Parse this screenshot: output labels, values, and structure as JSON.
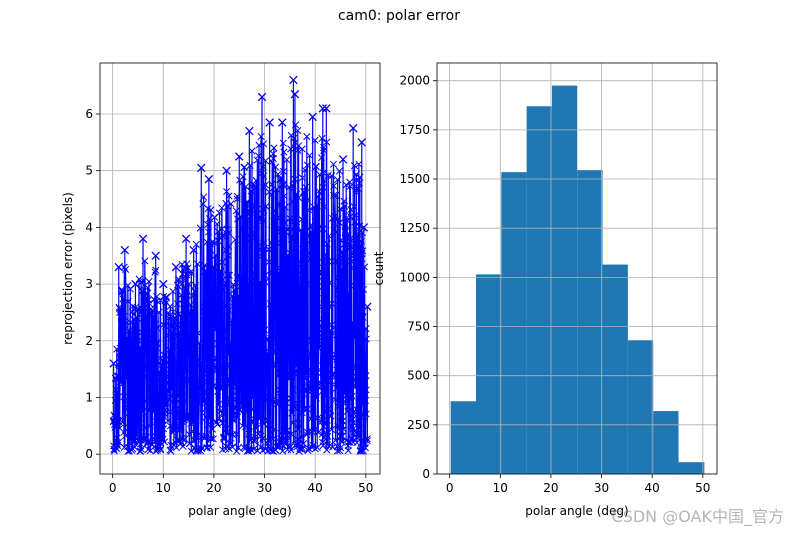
{
  "figure_title": "cam0: polar error",
  "watermark": "CSDN @OAK中国_官方",
  "chart_data": [
    {
      "type": "scatter",
      "style": "line-with-x-markers",
      "color": "#0000ff",
      "title": "",
      "xlabel": "polar angle (deg)",
      "ylabel": "reprojection error (pixels)",
      "xlim": [
        -2.5,
        52.8
      ],
      "ylim": [
        -0.35,
        6.9
      ],
      "xticks": [
        0,
        10,
        20,
        30,
        40,
        50
      ],
      "yticks": [
        0,
        1,
        2,
        3,
        4,
        5,
        6
      ],
      "grid": true,
      "peak_points": [
        {
          "x": 0.2,
          "y": 1.6
        },
        {
          "x": 1.2,
          "y": 3.3
        },
        {
          "x": 2.4,
          "y": 3.6
        },
        {
          "x": 4.5,
          "y": 3.0
        },
        {
          "x": 6.0,
          "y": 3.8
        },
        {
          "x": 8.5,
          "y": 3.5
        },
        {
          "x": 10.0,
          "y": 3.0
        },
        {
          "x": 12.5,
          "y": 3.3
        },
        {
          "x": 14.5,
          "y": 3.8
        },
        {
          "x": 16.0,
          "y": 3.6
        },
        {
          "x": 17.5,
          "y": 5.05
        },
        {
          "x": 19.0,
          "y": 4.85
        },
        {
          "x": 22.5,
          "y": 5.0
        },
        {
          "x": 25.0,
          "y": 5.25
        },
        {
          "x": 27.0,
          "y": 5.7
        },
        {
          "x": 29.5,
          "y": 6.3
        },
        {
          "x": 31.0,
          "y": 5.85
        },
        {
          "x": 33.5,
          "y": 5.85
        },
        {
          "x": 35.7,
          "y": 6.6
        },
        {
          "x": 36.0,
          "y": 6.35
        },
        {
          "x": 39.5,
          "y": 5.95
        },
        {
          "x": 41.5,
          "y": 6.1
        },
        {
          "x": 42.2,
          "y": 6.1
        },
        {
          "x": 45.5,
          "y": 5.2
        },
        {
          "x": 47.5,
          "y": 5.75
        },
        {
          "x": 49.2,
          "y": 5.5
        },
        {
          "x": 49.6,
          "y": 4.0
        },
        {
          "x": 50.3,
          "y": 2.6
        }
      ]
    },
    {
      "type": "bar",
      "style": "histogram",
      "color": "#1f77b4",
      "title": "",
      "xlabel": "polar angle (deg)",
      "ylabel": "count",
      "xlim": [
        -2.5,
        52.8
      ],
      "ylim": [
        0,
        2090
      ],
      "xticks": [
        0,
        10,
        20,
        30,
        40,
        50
      ],
      "yticks": [
        0,
        250,
        500,
        750,
        1000,
        1250,
        1500,
        1750,
        2000
      ],
      "grid": true,
      "bin_edges": [
        0.2,
        5.2,
        10.2,
        15.2,
        20.2,
        25.2,
        30.2,
        35.2,
        40.2,
        45.2,
        50.3
      ],
      "values": [
        370,
        1015,
        1535,
        1870,
        1975,
        1545,
        1065,
        680,
        320,
        60
      ]
    }
  ]
}
